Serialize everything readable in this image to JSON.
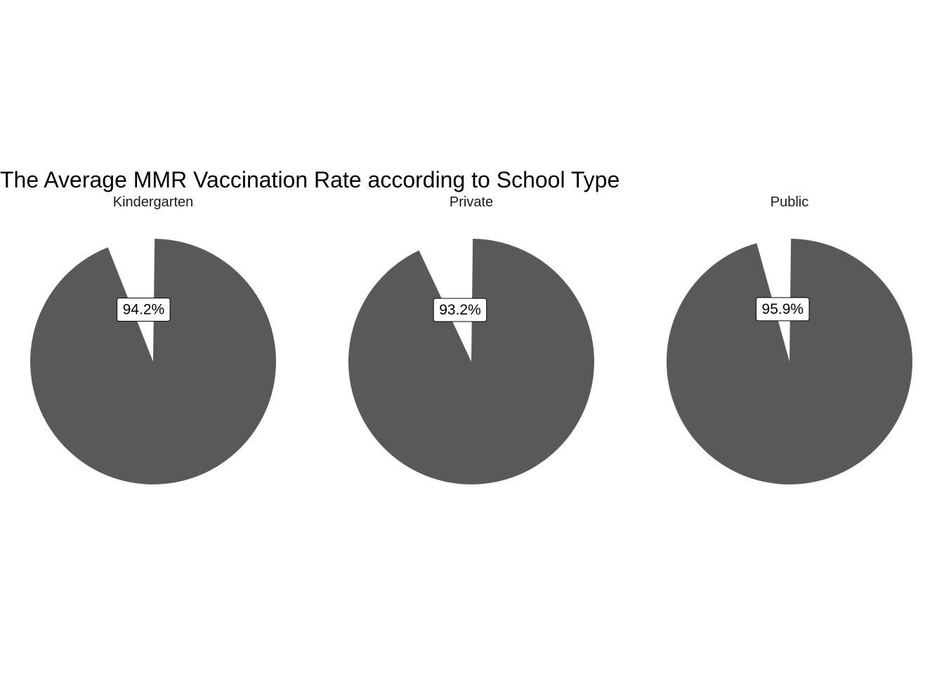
{
  "chart_data": {
    "type": "pie",
    "title": "The Average MMR Vaccination Rate according to School Type",
    "facets": [
      {
        "name": "Kindergarten",
        "value": 94.2,
        "label": "94.2%"
      },
      {
        "name": "Private",
        "value": 93.2,
        "label": "93.2%"
      },
      {
        "name": "Public",
        "value": 95.9,
        "label": "95.9%"
      }
    ],
    "fill_color": "#595959",
    "background": "#ffffff",
    "legend": "none",
    "grid": false
  }
}
